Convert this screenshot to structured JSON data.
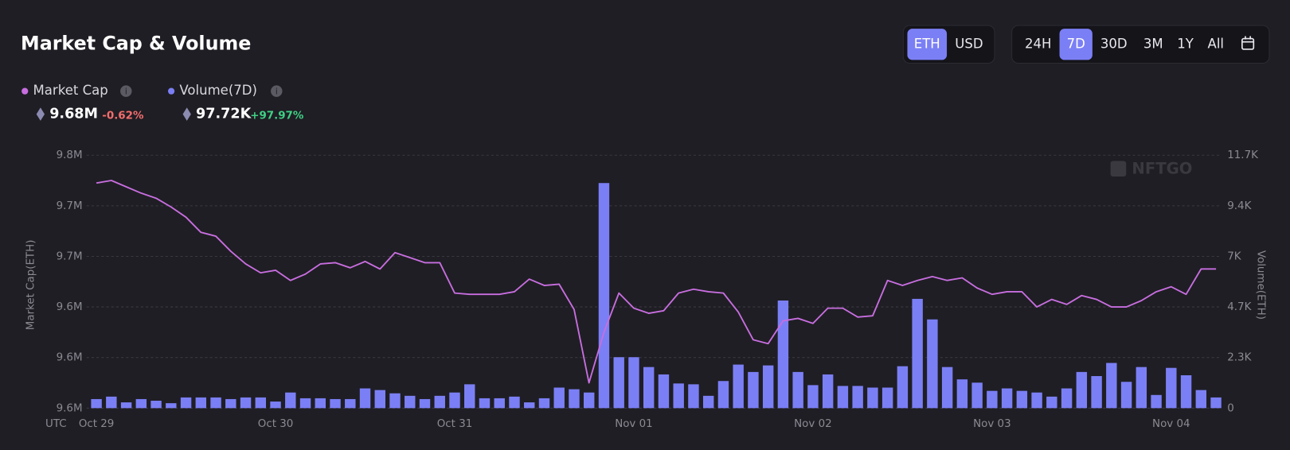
{
  "header": {
    "title": "Market Cap & Volume",
    "currencies": [
      "ETH",
      "USD"
    ],
    "active_currency": "ETH",
    "ranges": [
      "24H",
      "7D",
      "30D",
      "3M",
      "1Y",
      "All"
    ],
    "active_range": "7D"
  },
  "summary": [
    {
      "value": "9.68M",
      "change": "-0.62%"
    },
    {
      "value": "97.72K",
      "change": "+97.97%"
    }
  ],
  "chart_data": {
    "type": "combo",
    "watermark": "NFTGO",
    "x_timezone": "UTC",
    "ylabel": "Market Cap(ETH)",
    "y2label": "Volume(ETH)",
    "grid": true,
    "categories": [
      "Oct 29",
      null,
      null,
      null,
      null,
      null,
      null,
      null,
      null,
      null,
      null,
      null,
      "Oct 30",
      null,
      null,
      null,
      null,
      null,
      null,
      null,
      null,
      null,
      null,
      null,
      "Oct 31",
      null,
      null,
      null,
      null,
      null,
      null,
      null,
      null,
      null,
      null,
      null,
      "Nov 01",
      null,
      null,
      null,
      null,
      null,
      null,
      null,
      null,
      null,
      null,
      null,
      "Nov 02",
      null,
      null,
      null,
      null,
      null,
      null,
      null,
      null,
      null,
      null,
      null,
      "Nov 03",
      null,
      null,
      null,
      null,
      null,
      null,
      null,
      null,
      null,
      null,
      null,
      "Nov 04",
      null,
      null,
      null
    ],
    "ylim": [
      9560000,
      9760000
    ],
    "yticks": [
      {
        "value": 9560000,
        "label": "9.6M"
      },
      {
        "value": 9600000,
        "label": "9.6M"
      },
      {
        "value": 9640000,
        "label": "9.6M"
      },
      {
        "value": 9680000,
        "label": "9.7M"
      },
      {
        "value": 9720000,
        "label": "9.7M"
      },
      {
        "value": 9760000,
        "label": "9.8M"
      }
    ],
    "y2lim": [
      0,
      11700
    ],
    "y2ticks": [
      0,
      {
        "value": 2340,
        "label": "2.3K"
      },
      {
        "value": 4680,
        "label": "4.7K"
      },
      {
        "value": 7020,
        "label": "7K"
      },
      {
        "value": 9360,
        "label": "9.4K"
      },
      {
        "value": 11700,
        "label": "11.7K"
      }
    ],
    "series": [
      {
        "name": "Volume(7D)",
        "type": "bar",
        "axis": "y2",
        "color": "#7b7ff5",
        "values": [
          418,
          532,
          266,
          418,
          342,
          228,
          494,
          494,
          494,
          418,
          494,
          494,
          304,
          722,
          456,
          456,
          418,
          418,
          912,
          836,
          684,
          570,
          418,
          570,
          722,
          1102,
          456,
          456,
          532,
          266,
          456,
          950,
          874,
          722,
          10412,
          2356,
          2356,
          1900,
          1558,
          1140,
          1102,
          570,
          1254,
          2014,
          1672,
          1976,
          4978,
          1672,
          1064,
          1558,
          1026,
          1026,
          950,
          950,
          1938,
          5054,
          4104,
          1900,
          1330,
          1178,
          798,
          912,
          798,
          722,
          532,
          912,
          1672,
          1482,
          2090,
          1216,
          1900,
          608,
          1862,
          1520,
          836,
          494
        ]
      },
      {
        "name": "Market Cap",
        "type": "line",
        "color": "#c86ee0",
        "values": [
          9738000,
          9740000,
          9735000,
          9730000,
          9726000,
          9719000,
          9711000,
          9699000,
          9696000,
          9684000,
          9674000,
          9667000,
          9669000,
          9661000,
          9666000,
          9674000,
          9675000,
          9671000,
          9676000,
          9670000,
          9683000,
          9679000,
          9675000,
          9675000,
          9651000,
          9650000,
          9650000,
          9650000,
          9652000,
          9662000,
          9657000,
          9658000,
          9638000,
          9580000,
          9620000,
          9651000,
          9639000,
          9635000,
          9637000,
          9651000,
          9654000,
          9652000,
          9651000,
          9636000,
          9614000,
          9611000,
          9629000,
          9631000,
          9627000,
          9639000,
          9639000,
          9632000,
          9633000,
          9661000,
          9657000,
          9661000,
          9664000,
          9661000,
          9663000,
          9655000,
          9650000,
          9652000,
          9652000,
          9640000,
          9646000,
          9642000,
          9649000,
          9646000,
          9640000,
          9640000,
          9645000,
          9652000,
          9656000,
          9650000,
          9670000,
          9670000
        ]
      }
    ]
  }
}
